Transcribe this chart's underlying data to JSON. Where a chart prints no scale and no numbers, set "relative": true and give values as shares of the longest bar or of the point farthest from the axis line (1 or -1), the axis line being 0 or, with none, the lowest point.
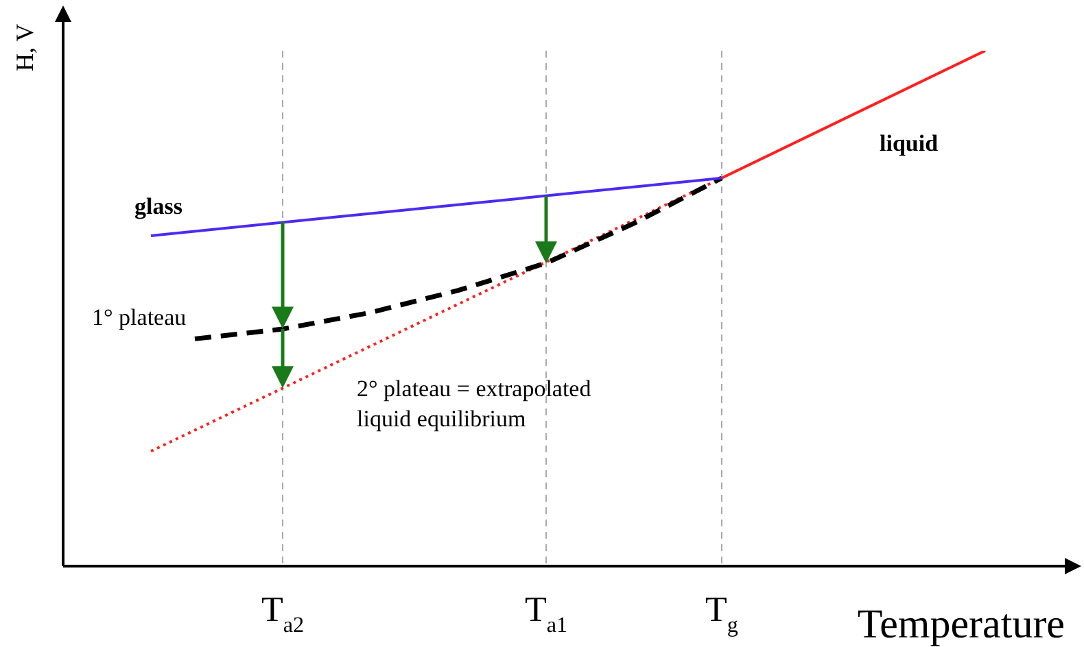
{
  "chart_data": {
    "type": "line",
    "relative": true,
    "xlabel": "Temperature",
    "ylabel": "H, V",
    "categories": [
      null,
      null,
      null,
      null,
      null,
      "T$_{a2}$",
      null,
      null,
      null,
      null,
      null,
      "T$_{a1}$",
      null,
      null,
      null,
      "T$_{g}$",
      null,
      null,
      null,
      null,
      null,
      null,
      null
    ],
    "series": [
      {
        "name": "glass",
        "color": "#4a2cf0",
        "line_style": "solid",
        "values": [
          null,
          null,
          0.641,
          null,
          null,
          null,
          null,
          null,
          null,
          null,
          null,
          null,
          null,
          null,
          null,
          0.753,
          null,
          null,
          null,
          null,
          null,
          null,
          null
        ]
      },
      {
        "name": "liquid",
        "color": "#ff2020",
        "line_style": "solid",
        "values": [
          null,
          null,
          null,
          null,
          null,
          null,
          null,
          null,
          null,
          null,
          null,
          null,
          null,
          null,
          null,
          0.753,
          null,
          null,
          null,
          null,
          null,
          1,
          null
        ]
      },
      {
        "name": "1° plateau",
        "color": "#000000",
        "line_style": "dashed",
        "values": [
          null,
          null,
          null,
          0.441,
          null,
          0.46,
          null,
          0.492,
          null,
          0.535,
          null,
          0.588,
          null,
          0.665,
          null,
          0.753,
          null,
          null,
          null,
          null,
          null,
          null,
          null
        ]
      },
      {
        "name": "2° plateau = extrapolated liquid equilibrium",
        "color": "#ff2020",
        "line_style": "dotted",
        "values": [
          null,
          null,
          0.223,
          null,
          null,
          null,
          null,
          null,
          null,
          null,
          null,
          null,
          null,
          null,
          null,
          0.753,
          null,
          null,
          null,
          null,
          null,
          null,
          null
        ]
      }
    ],
    "grid": "x",
    "legend": false,
    "marker": "none"
  }
}
